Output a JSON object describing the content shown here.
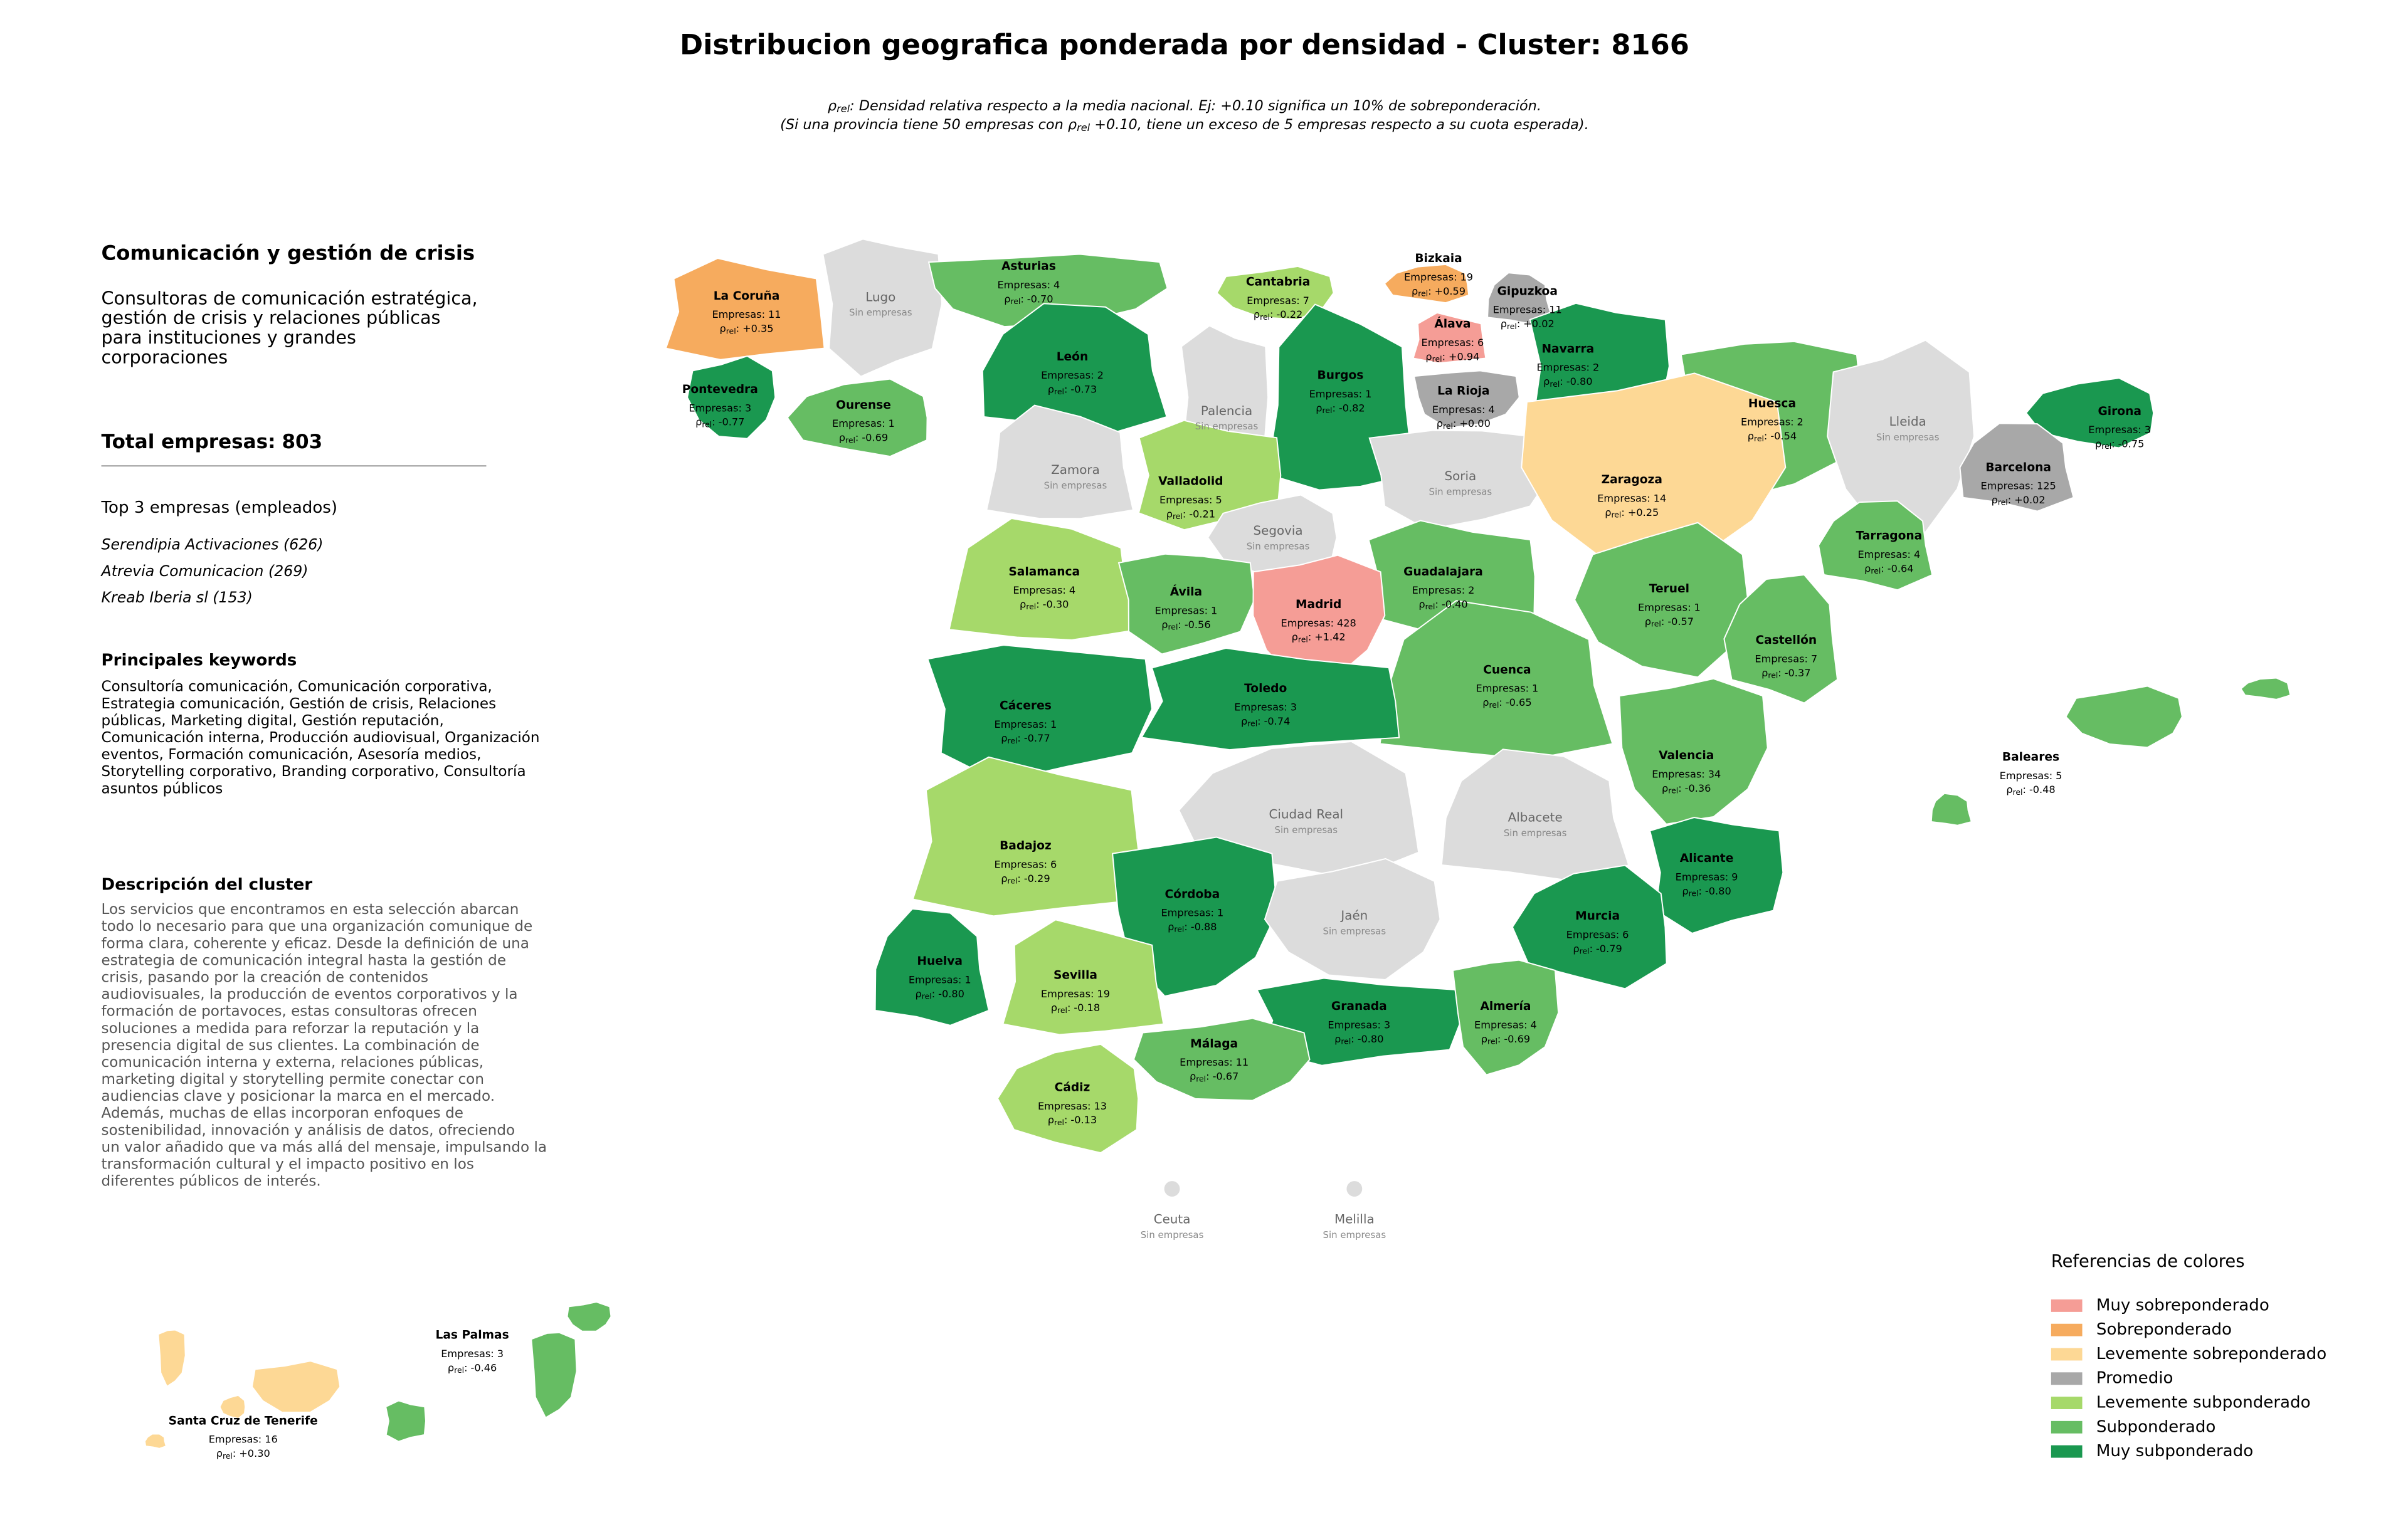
{
  "header": {
    "title": "Distribucion geografica ponderada por densidad - Cluster: 8166",
    "subtitle_line1": {
      "symbol": "ρ",
      "sub": "rel",
      "text": ": Densidad relativa respecto a la media nacional. Ej: +0.10 significa un 10% de sobreponderación."
    },
    "subtitle_line2": {
      "before": "(Si una provincia tiene 50 empresas con ",
      "symbol": "ρ",
      "sub": "rel",
      "after": " +0.10, tiene un exceso de 5 empresas respecto a su cuota esperada)."
    }
  },
  "panel": {
    "cluster_name": "Comunicación y gestión de crisis",
    "summary": [
      "Consultoras de comunicación estratégica,",
      "gestión de crisis y relaciones públicas",
      "para instituciones y grandes",
      "corporaciones"
    ],
    "total_label": "Total empresas:",
    "total": 803,
    "top_title": "Top 3 empresas (empleados)",
    "top": [
      "Serendipia Activaciones (626)",
      "Atrevia Comunicacion (269)",
      "Kreab Iberia sl (153)"
    ],
    "keywords_title": "Principales keywords",
    "keywords": [
      "Consultoría comunicación, Comunicación corporativa,",
      "Estrategia comunicación, Gestión de crisis, Relaciones",
      "públicas, Marketing digital, Gestión reputación,",
      "Comunicación interna, Producción audiovisual, Organización",
      "eventos, Formación comunicación, Asesoría medios,",
      "Storytelling corporativo, Branding corporativo, Consultoría",
      "asuntos públicos"
    ],
    "description_title": "Descripción del cluster",
    "description": [
      "Los servicios que encontramos en esta selección abarcan",
      "todo lo necesario para que una organización comunique de",
      "forma clara, coherente y eficaz. Desde la definición de una",
      "estrategia de comunicación integral hasta la gestión de",
      "crisis, pasando por la creación de contenidos",
      "audiovisuales, la producción de eventos corporativos y la",
      "formación de portavoces, estas consultoras ofrecen",
      "soluciones a medida para reforzar la reputación y la",
      "presencia digital de sus clientes. La combinación de",
      "comunicación interna y externa, relaciones públicas,",
      "marketing digital y storytelling permite conectar con",
      "audiencias clave y posicionar la marca en el mercado.",
      "Además, muchas de ellas incorporan enfoques de",
      "sostenibilidad, innovación y análisis de datos, ofreciendo",
      "un valor añadido que va más allá del mensaje, impulsando la",
      "transformación cultural y el impacto positivo en los",
      "diferentes públicos de interés."
    ]
  },
  "map": {
    "companies_label": "Empresas:",
    "rho_symbol": "ρ",
    "rho_sub": "rel",
    "rho_sep": ":",
    "no_companies_label": "Sin empresas",
    "no_companies_color": "#dcdcdc",
    "provinces": [
      {
        "name": "La Coruña",
        "companies": 11,
        "rho": "+0.35",
        "color": "#f6ab5e"
      },
      {
        "name": "Lugo"
      },
      {
        "name": "Asturias",
        "companies": 4,
        "rho": "-0.70",
        "color": "#66bd63"
      },
      {
        "name": "Cantabria",
        "companies": 7,
        "rho": "-0.22",
        "color": "#a6d96a"
      },
      {
        "name": "Bizkaia",
        "companies": 19,
        "rho": "+0.59",
        "color": "#f6ab5e"
      },
      {
        "name": "Gipuzkoa",
        "companies": 11,
        "rho": "+0.02",
        "color": "#a8a8a8"
      },
      {
        "name": "Álava",
        "companies": 6,
        "rho": "+0.94",
        "color": "#f59d96"
      },
      {
        "name": "Navarra",
        "companies": 2,
        "rho": "-0.80",
        "color": "#1a9850"
      },
      {
        "name": "La Rioja",
        "companies": 4,
        "rho": "+0.00",
        "color": "#a8a8a8"
      },
      {
        "name": "Pontevedra",
        "companies": 3,
        "rho": "-0.77",
        "color": "#1a9850"
      },
      {
        "name": "Ourense",
        "companies": 1,
        "rho": "-0.69",
        "color": "#66bd63"
      },
      {
        "name": "León",
        "companies": 2,
        "rho": "-0.73",
        "color": "#1a9850"
      },
      {
        "name": "Burgos",
        "companies": 1,
        "rho": "-0.82",
        "color": "#1a9850"
      },
      {
        "name": "Palencia"
      },
      {
        "name": "Huesca",
        "companies": 2,
        "rho": "-0.54",
        "color": "#66bd63"
      },
      {
        "name": "Lleida"
      },
      {
        "name": "Girona",
        "companies": 3,
        "rho": "-0.75",
        "color": "#1a9850"
      },
      {
        "name": "Barcelona",
        "companies": 125,
        "rho": "+0.02",
        "color": "#a8a8a8"
      },
      {
        "name": "Zamora"
      },
      {
        "name": "Valladolid",
        "companies": 5,
        "rho": "-0.21",
        "color": "#a6d96a"
      },
      {
        "name": "Soria"
      },
      {
        "name": "Zaragoza",
        "companies": 14,
        "rho": "+0.25",
        "color": "#fdd895"
      },
      {
        "name": "Segovia"
      },
      {
        "name": "Tarragona",
        "companies": 4,
        "rho": "-0.64",
        "color": "#66bd63"
      },
      {
        "name": "Salamanca",
        "companies": 4,
        "rho": "-0.30",
        "color": "#a6d96a"
      },
      {
        "name": "Guadalajara",
        "companies": 2,
        "rho": "-0.40",
        "color": "#66bd63"
      },
      {
        "name": "Ávila",
        "companies": 1,
        "rho": "-0.56",
        "color": "#66bd63"
      },
      {
        "name": "Madrid",
        "companies": 428,
        "rho": "+1.42",
        "color": "#f59d96"
      },
      {
        "name": "Teruel",
        "companies": 1,
        "rho": "-0.57",
        "color": "#66bd63"
      },
      {
        "name": "Castellón",
        "companies": 7,
        "rho": "-0.37",
        "color": "#66bd63"
      },
      {
        "name": "Cuenca",
        "companies": 1,
        "rho": "-0.65",
        "color": "#66bd63"
      },
      {
        "name": "Toledo",
        "companies": 3,
        "rho": "-0.74",
        "color": "#1a9850"
      },
      {
        "name": "Cáceres",
        "companies": 1,
        "rho": "-0.77",
        "color": "#1a9850"
      },
      {
        "name": "Valencia",
        "companies": 34,
        "rho": "-0.36",
        "color": "#66bd63"
      },
      {
        "name": "Baleares",
        "companies": 5,
        "rho": "-0.48",
        "color": "#66bd63"
      },
      {
        "name": "Ciudad Real"
      },
      {
        "name": "Albacete"
      },
      {
        "name": "Badajoz",
        "companies": 6,
        "rho": "-0.29",
        "color": "#a6d96a"
      },
      {
        "name": "Alicante",
        "companies": 9,
        "rho": "-0.80",
        "color": "#1a9850"
      },
      {
        "name": "Córdoba",
        "companies": 1,
        "rho": "-0.88",
        "color": "#1a9850"
      },
      {
        "name": "Jaén"
      },
      {
        "name": "Murcia",
        "companies": 6,
        "rho": "-0.79",
        "color": "#1a9850"
      },
      {
        "name": "Huelva",
        "companies": 1,
        "rho": "-0.80",
        "color": "#1a9850"
      },
      {
        "name": "Sevilla",
        "companies": 19,
        "rho": "-0.18",
        "color": "#a6d96a"
      },
      {
        "name": "Granada",
        "companies": 3,
        "rho": "-0.80",
        "color": "#1a9850"
      },
      {
        "name": "Almería",
        "companies": 4,
        "rho": "-0.69",
        "color": "#66bd63"
      },
      {
        "name": "Málaga",
        "companies": 11,
        "rho": "-0.67",
        "color": "#66bd63"
      },
      {
        "name": "Cádiz",
        "companies": 13,
        "rho": "-0.13",
        "color": "#a6d96a"
      },
      {
        "name": "Ceuta"
      },
      {
        "name": "Melilla"
      },
      {
        "name": "Las Palmas",
        "companies": 3,
        "rho": "-0.46",
        "color": "#66bd63"
      },
      {
        "name": "Santa Cruz de Tenerife",
        "companies": 16,
        "rho": "+0.30",
        "color": "#fdd895"
      }
    ]
  },
  "legend": {
    "title": "Referencias de colores",
    "items": [
      {
        "label": "Muy sobreponderado",
        "color": "#f59d96"
      },
      {
        "label": "Sobreponderado",
        "color": "#f6ab5e"
      },
      {
        "label": "Levemente sobreponderado",
        "color": "#fdd895"
      },
      {
        "label": "Promedio",
        "color": "#a8a8a8"
      },
      {
        "label": "Levemente subponderado",
        "color": "#a6d96a"
      },
      {
        "label": "Subponderado",
        "color": "#66bd63"
      },
      {
        "label": "Muy subponderado",
        "color": "#1a9850"
      }
    ]
  }
}
